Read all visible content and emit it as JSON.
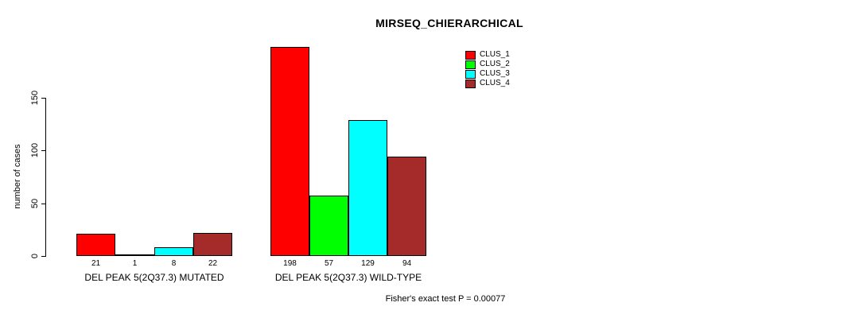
{
  "chart_data": {
    "type": "bar",
    "title": "MIRSEQ_CHIERARCHICAL",
    "xlabel": "",
    "ylabel": "number of cases",
    "yticks": [
      0,
      50,
      100,
      150
    ],
    "ylim": [
      0,
      150
    ],
    "grid": false,
    "legend_position": "top-right",
    "categories": [
      "DEL PEAK 5(2Q37.3) MUTATED",
      "DEL PEAK 5(2Q37.3) WILD-TYPE"
    ],
    "series": [
      {
        "name": "CLUS_1",
        "color": "#FF0000",
        "values": [
          21,
          198
        ]
      },
      {
        "name": "CLUS_2",
        "color": "#00FF00",
        "values": [
          1,
          57
        ]
      },
      {
        "name": "CLUS_3",
        "color": "#00FFFF",
        "values": [
          8,
          129
        ]
      },
      {
        "name": "CLUS_4",
        "color": "#A52A2A",
        "values": [
          22,
          94
        ]
      }
    ],
    "bar_value_labels": [
      [
        21,
        1,
        8,
        22
      ],
      [
        198,
        57,
        129,
        94
      ]
    ],
    "footnote": "Fisher's exact test P = 0.00077"
  },
  "colors": {
    "background": "#FFFFFF",
    "axis": "#000000",
    "text": "#000000"
  }
}
